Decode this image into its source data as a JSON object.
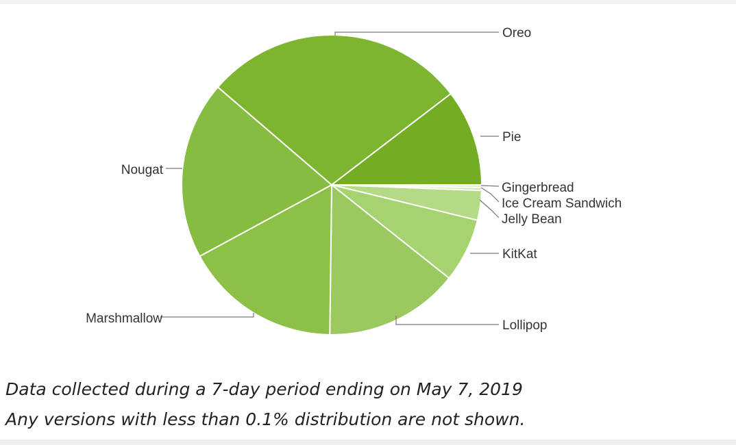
{
  "chart_data": {
    "type": "pie",
    "title": "",
    "start_angle_deg": 0,
    "direction": "counterclockwise",
    "slices": [
      {
        "label": "Gingerbread",
        "value": 0.3,
        "color": "#ddefc6"
      },
      {
        "label": "Ice Cream Sandwich",
        "value": 0.3,
        "color": "#cbe6a8"
      },
      {
        "label": "Jelly Bean",
        "value": 3.2,
        "color": "#b4da86"
      },
      {
        "label": "KitKat",
        "value": 6.9,
        "color": "#a6d270"
      },
      {
        "label": "Lollipop",
        "value": 14.5,
        "color": "#9bc95f"
      },
      {
        "label": "Marshmallow",
        "value": 16.9,
        "color": "#8dc046"
      },
      {
        "label": "Nougat",
        "value": 19.2,
        "color": "#86bd40"
      },
      {
        "label": "Oreo",
        "value": 28.3,
        "color": "#7db530"
      },
      {
        "label": "Pie",
        "value": 10.4,
        "color": "#74ad24"
      }
    ]
  },
  "footer": {
    "line1": "Data collected during a 7-day period ending on May 7, 2019",
    "line2": "Any versions with less than 0.1% distribution are not shown."
  }
}
